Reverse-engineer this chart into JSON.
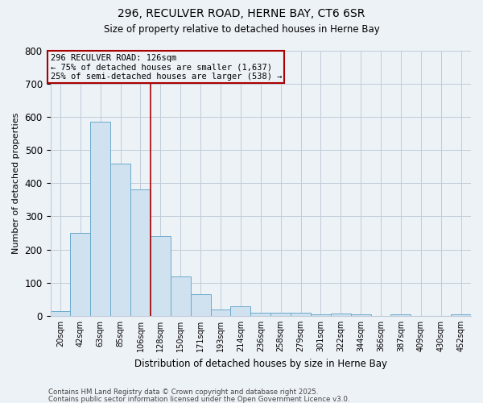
{
  "title1": "296, RECULVER ROAD, HERNE BAY, CT6 6SR",
  "title2": "Size of property relative to detached houses in Herne Bay",
  "xlabel": "Distribution of detached houses by size in Herne Bay",
  "ylabel": "Number of detached properties",
  "categories": [
    "20sqm",
    "42sqm",
    "63sqm",
    "85sqm",
    "106sqm",
    "128sqm",
    "150sqm",
    "171sqm",
    "193sqm",
    "214sqm",
    "236sqm",
    "258sqm",
    "279sqm",
    "301sqm",
    "322sqm",
    "344sqm",
    "366sqm",
    "387sqm",
    "409sqm",
    "430sqm",
    "452sqm"
  ],
  "values": [
    15,
    250,
    585,
    460,
    380,
    240,
    120,
    65,
    20,
    30,
    10,
    10,
    10,
    5,
    8,
    5,
    0,
    5,
    0,
    0,
    5
  ],
  "bar_color": "#d0e2f0",
  "bar_edge_color": "#6aaacc",
  "reference_line_x": 5,
  "reference_line_color": "#aa0000",
  "annotation_text": "296 RECULVER ROAD: 126sqm\n← 75% of detached houses are smaller (1,637)\n25% of semi-detached houses are larger (538) →",
  "annotation_box_color": "#aa0000",
  "ylim": [
    0,
    800
  ],
  "yticks": [
    0,
    100,
    200,
    300,
    400,
    500,
    600,
    700,
    800
  ],
  "footer1": "Contains HM Land Registry data © Crown copyright and database right 2025.",
  "footer2": "Contains public sector information licensed under the Open Government Licence v3.0.",
  "bg_color": "#edf2f7",
  "grid_color": "#c0ccd8"
}
